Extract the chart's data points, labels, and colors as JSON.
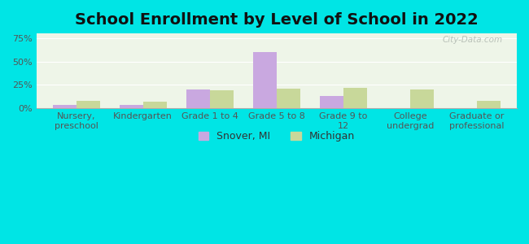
{
  "title": "School Enrollment by Level of School in 2022",
  "categories": [
    "Nursery,\npreschool",
    "Kindergarten",
    "Grade 1 to 4",
    "Grade 5 to 8",
    "Grade 9 to\n12",
    "College\nundergrad",
    "Graduate or\nprofessional"
  ],
  "snover_values": [
    3.5,
    3.5,
    20.0,
    60.0,
    13.0,
    0.0,
    0.0
  ],
  "michigan_values": [
    8.0,
    7.0,
    19.0,
    21.0,
    22.0,
    20.0,
    8.0
  ],
  "snover_color": "#c9a8e0",
  "michigan_color": "#c8d89a",
  "snover_label": "Snover, MI",
  "michigan_label": "Michigan",
  "yticks": [
    0,
    25,
    50,
    75
  ],
  "ytick_labels": [
    "0%",
    "25%",
    "50%",
    "75%"
  ],
  "ylim": [
    0,
    80
  ],
  "background_color": "#00e5e5",
  "plot_bg_top": "#f0f5e8",
  "plot_bg_bottom": "#e8f2e0",
  "title_fontsize": 14,
  "tick_fontsize": 8,
  "legend_fontsize": 9,
  "watermark": "City-Data.com"
}
